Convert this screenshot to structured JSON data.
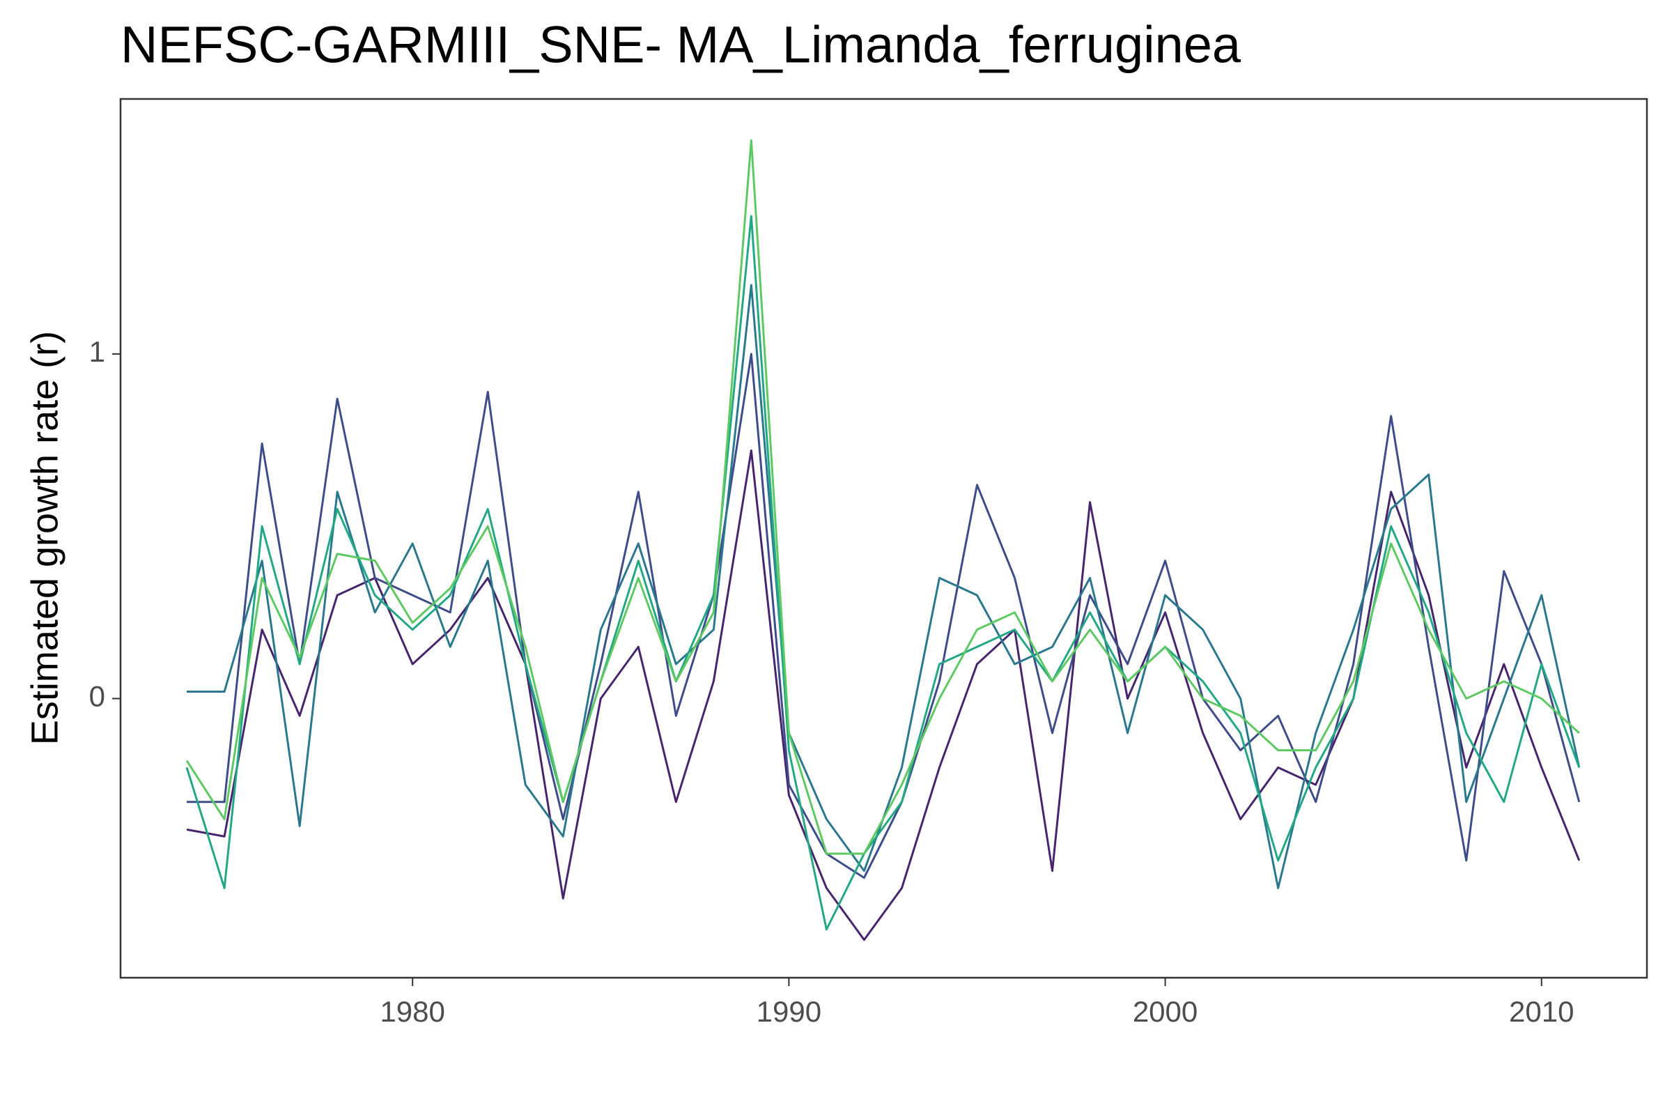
{
  "chart_data": {
    "type": "line",
    "title": "NEFSC-GARMIII_SNE- MA_Limanda_ferruginea",
    "ylabel": "Estimated growth rate (r)",
    "x": [
      1974,
      1975,
      1976,
      1977,
      1978,
      1979,
      1980,
      1981,
      1982,
      1983,
      1984,
      1985,
      1986,
      1987,
      1988,
      1989,
      1990,
      1991,
      1992,
      1993,
      1994,
      1995,
      1996,
      1997,
      1998,
      1999,
      2000,
      2001,
      2002,
      2003,
      2004,
      2005,
      2006,
      2007,
      2008,
      2009,
      2010,
      2011
    ],
    "xlim": [
      1972.24,
      2012.8
    ],
    "xticks": [
      1980,
      1990,
      2000,
      2010
    ],
    "ylim": [
      -0.81,
      1.74
    ],
    "yticks": [
      0,
      1
    ],
    "grid": false,
    "series": [
      {
        "color": "#46256e",
        "values": [
          -0.38,
          -0.4,
          0.2,
          -0.05,
          0.3,
          0.35,
          0.1,
          0.2,
          0.35,
          0.1,
          -0.58,
          0.0,
          0.15,
          -0.3,
          0.05,
          0.72,
          -0.28,
          -0.55,
          -0.7,
          -0.55,
          -0.2,
          0.1,
          0.2,
          -0.5,
          0.57,
          0.0,
          0.25,
          -0.1,
          -0.35,
          -0.2,
          -0.25,
          0.0,
          0.6,
          0.3,
          -0.2,
          0.1,
          -0.2,
          -0.47
        ]
      },
      {
        "color": "#3e4c8a",
        "values": [
          -0.3,
          -0.3,
          0.74,
          0.1,
          0.87,
          0.35,
          0.3,
          0.25,
          0.89,
          0.1,
          -0.35,
          0.1,
          0.6,
          -0.05,
          0.3,
          1.0,
          -0.25,
          -0.45,
          -0.52,
          -0.3,
          0.05,
          0.62,
          0.35,
          -0.1,
          0.3,
          0.1,
          0.4,
          0.0,
          -0.15,
          -0.05,
          -0.3,
          0.1,
          0.82,
          0.15,
          -0.47,
          0.37,
          0.1,
          -0.3
        ]
      },
      {
        "color": "#2a788e",
        "values": [
          0.02,
          0.02,
          0.4,
          -0.37,
          0.6,
          0.25,
          0.45,
          0.15,
          0.4,
          -0.25,
          -0.4,
          0.2,
          0.45,
          0.1,
          0.2,
          1.2,
          -0.1,
          -0.35,
          -0.5,
          -0.2,
          0.35,
          0.3,
          0.1,
          0.15,
          0.35,
          -0.1,
          0.3,
          0.2,
          0.0,
          -0.55,
          -0.1,
          0.2,
          0.55,
          0.65,
          -0.3,
          0.0,
          0.3,
          -0.2
        ]
      },
      {
        "color": "#22a884",
        "values": [
          -0.2,
          -0.55,
          0.5,
          0.1,
          0.55,
          0.3,
          0.2,
          0.3,
          0.55,
          0.1,
          -0.3,
          0.05,
          0.4,
          0.05,
          0.3,
          1.4,
          -0.15,
          -0.67,
          -0.45,
          -0.3,
          0.1,
          0.15,
          0.2,
          0.05,
          0.25,
          0.05,
          0.15,
          0.05,
          -0.1,
          -0.47,
          -0.2,
          0.0,
          0.5,
          0.25,
          -0.1,
          -0.3,
          0.1,
          -0.2
        ]
      },
      {
        "color": "#5ec962",
        "values": [
          -0.18,
          -0.35,
          0.35,
          0.12,
          0.42,
          0.4,
          0.22,
          0.32,
          0.5,
          0.15,
          -0.3,
          0.05,
          0.35,
          0.05,
          0.25,
          1.62,
          -0.1,
          -0.45,
          -0.45,
          -0.25,
          0.0,
          0.2,
          0.25,
          0.05,
          0.2,
          0.05,
          0.15,
          0.0,
          -0.05,
          -0.15,
          -0.15,
          0.05,
          0.45,
          0.2,
          0.0,
          0.05,
          0.0,
          -0.1
        ]
      }
    ]
  }
}
